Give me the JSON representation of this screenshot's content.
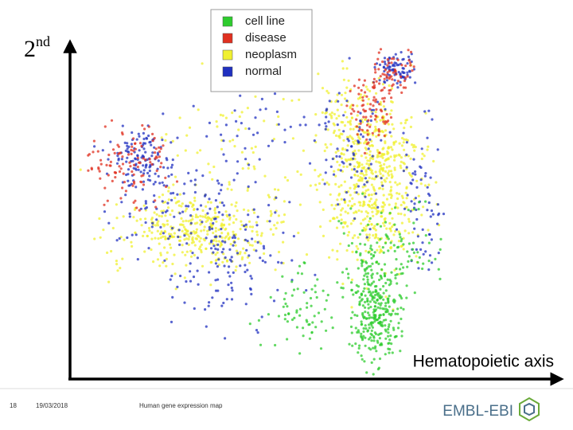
{
  "chart_data": {
    "type": "scatter",
    "y_label": {
      "main": "2",
      "sup": "nd"
    },
    "x_label": "Hematopoietic axis",
    "legend": [
      {
        "name": "cell line",
        "color": "#2ecc2e"
      },
      {
        "name": "disease",
        "color": "#e03020"
      },
      {
        "name": "neoplasm",
        "color": "#f0f030"
      },
      {
        "name": "normal",
        "color": "#2030c0"
      }
    ]
  },
  "footer": {
    "slide_number": "18",
    "date": "19/03/2018",
    "title": "Human gene expression map",
    "logo": "EMBL-EBI"
  }
}
